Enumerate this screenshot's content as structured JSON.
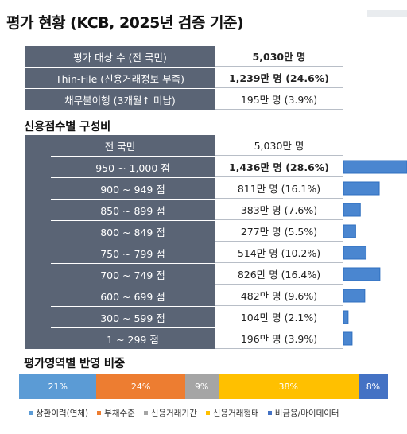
{
  "title": "평가 현황 (KCB, 2025년 검증 기준)",
  "summary": [
    {
      "label": "평가 대상 수 (전 국민)",
      "value": "5,030만 명",
      "bold": true
    },
    {
      "label": "Thin-File  (신용거래정보 부족)",
      "value": "1,239만 명 (24.6%)",
      "bold": true
    },
    {
      "label": "채무불이행 (3개월↑ 미납)",
      "value": "195만 명 (3.9%)",
      "bold": false
    }
  ],
  "score_section_title": "신용점수별 구성비",
  "score_total": {
    "label": "전 국민",
    "value": "5,030만 명"
  },
  "weight_section_title": "평가영역별 반영 비중",
  "colors": {
    "header": "#5a6475",
    "bar": "#4a86d0",
    "bar_stroke": "#2f6fbf"
  },
  "chart_data": [
    {
      "type": "bar",
      "orientation": "horizontal",
      "categories": [
        "950 ~ 1,000 점",
        "900 ~ 949 점",
        "850 ~ 899 점",
        "800 ~ 849 점",
        "750 ~ 799 점",
        "700 ~ 749 점",
        "600 ~ 699 점",
        "300 ~ 599 점",
        "1 ~ 299 점"
      ],
      "values": [
        28.6,
        16.1,
        7.6,
        5.5,
        10.2,
        16.4,
        9.6,
        2.1,
        3.9
      ],
      "labels": [
        "1,436만 명 (28.6%)",
        "811만 명 (16.1%)",
        "383만 명 (7.6%)",
        "277만 명 (5.5%)",
        "514만 명 (10.2%)",
        "826만 명 (16.4%)",
        "482만 명 (9.6%)",
        "104만 명 (2.1%)",
        "196만 명 (3.9%)"
      ],
      "bold_index": 0
    },
    {
      "type": "bar",
      "orientation": "stacked-100",
      "series": [
        {
          "name": "상환이력(연체)",
          "value": 21,
          "label": "21%",
          "color": "#5b9bd5"
        },
        {
          "name": "부채수준",
          "value": 24,
          "label": "24%",
          "color": "#ed7d31"
        },
        {
          "name": "신용거래기간",
          "value": 9,
          "label": "9%",
          "color": "#a5a5a5"
        },
        {
          "name": "신용거래형태",
          "value": 38,
          "label": "38%",
          "color": "#ffc000"
        },
        {
          "name": "비금융/마이데이터",
          "value": 8,
          "label": "8%",
          "color": "#4472c4"
        }
      ],
      "legend_position": "bottom"
    }
  ]
}
